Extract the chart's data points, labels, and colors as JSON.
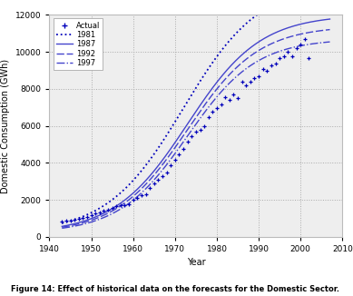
{
  "title": "",
  "xlabel": "Year",
  "ylabel": "Domestic Consumption (GWh)",
  "caption": "Figure 14: Effect of historical data on the forecasts for the Domestic Sector.",
  "xlim": [
    1940,
    2010
  ],
  "ylim": [
    0,
    12000
  ],
  "xticks": [
    1940,
    1950,
    1960,
    1970,
    1980,
    1990,
    2000,
    2010
  ],
  "yticks": [
    0,
    2000,
    4000,
    6000,
    8000,
    10000,
    12000
  ],
  "color_dark": "#0000bb",
  "color_mid": "#4444cc",
  "color_light": "#7777cc",
  "bg_color": "#eeeeee",
  "actual_years": [
    1943,
    1944,
    1945,
    1946,
    1947,
    1948,
    1949,
    1950,
    1951,
    1952,
    1953,
    1954,
    1955,
    1956,
    1957,
    1958,
    1959,
    1960,
    1961,
    1962,
    1963,
    1964,
    1965,
    1966,
    1967,
    1968,
    1969,
    1970,
    1971,
    1972,
    1973,
    1974,
    1975,
    1976,
    1977,
    1978,
    1979,
    1980,
    1981,
    1982,
    1983,
    1984,
    1985,
    1986,
    1987,
    1988,
    1989,
    1990,
    1991,
    1992,
    1993,
    1994,
    1995,
    1996,
    1997,
    1998,
    1999,
    2000,
    2001,
    2002
  ],
  "actual_values": [
    820,
    870,
    850,
    940,
    990,
    1040,
    1090,
    1180,
    1260,
    1300,
    1390,
    1480,
    1580,
    1660,
    1700,
    1690,
    1750,
    1980,
    2080,
    2250,
    2280,
    2620,
    2870,
    3080,
    3270,
    3470,
    3870,
    4180,
    4470,
    4760,
    5160,
    5450,
    5660,
    5760,
    5960,
    6450,
    6760,
    6980,
    7180,
    7560,
    7380,
    7680,
    7480,
    8380,
    8170,
    8370,
    8570,
    8670,
    9080,
    8980,
    9280,
    9380,
    9680,
    9780,
    9980,
    9780,
    10180,
    10380,
    10680,
    9680
  ],
  "L_base": 11500,
  "k_base": 0.115,
  "x0_base": 1973,
  "b_base": 200,
  "L_1981": 13500,
  "k_1981": 0.11,
  "x0_1981": 1972,
  "b_1981": 200,
  "L_1987": 11800,
  "k_1987": 0.115,
  "x0_1987": 1973,
  "b_1987": 200,
  "L_1992": 11200,
  "k_1992": 0.118,
  "x0_1992": 1973,
  "b_1992": 200,
  "L_1997": 10500,
  "k_1997": 0.122,
  "x0_1997": 1973,
  "b_1997": 200,
  "figsize": [
    3.89,
    3.26
  ],
  "dpi": 100
}
